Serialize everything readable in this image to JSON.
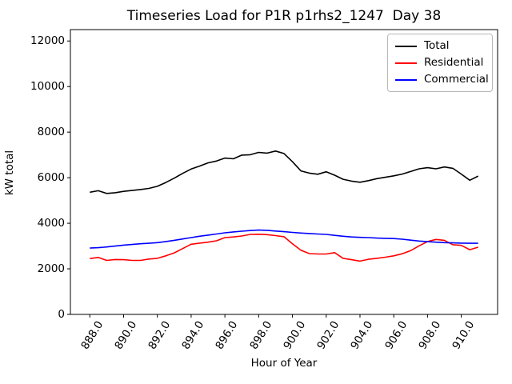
{
  "title": "Timeseries Load for P1R p1rhs2_1247  Day 38",
  "chart_data": {
    "type": "line",
    "title": "Timeseries Load for P1R p1rhs2_1247  Day 38",
    "xlabel": "Hour of Year",
    "ylabel": "kW total",
    "xlim": [
      886.85,
      912.15
    ],
    "ylim": [
      0,
      12500
    ],
    "grid": false,
    "legend_position": "upper right",
    "xtick_labels": [
      "888.0",
      "890.0",
      "892.0",
      "894.0",
      "896.0",
      "898.0",
      "900.0",
      "902.0",
      "904.0",
      "906.0",
      "908.0",
      "910.0"
    ],
    "ytick_labels": [
      "0",
      "2000",
      "4000",
      "6000",
      "8000",
      "10000",
      "12000"
    ],
    "ytick_values": [
      0,
      2000,
      4000,
      6000,
      8000,
      10000,
      12000
    ],
    "x": [
      888.0,
      888.5,
      889.0,
      889.5,
      890.0,
      890.5,
      891.0,
      891.5,
      892.0,
      892.5,
      893.0,
      893.5,
      894.0,
      894.5,
      895.0,
      895.5,
      896.0,
      896.5,
      897.0,
      897.5,
      898.0,
      898.5,
      899.0,
      899.5,
      900.0,
      900.5,
      901.0,
      901.5,
      902.0,
      902.5,
      903.0,
      903.5,
      904.0,
      904.5,
      905.0,
      905.5,
      906.0,
      906.5,
      907.0,
      907.5,
      908.0,
      908.5,
      909.0,
      909.5,
      910.0,
      910.5,
      911.0
    ],
    "series": [
      {
        "name": "Total",
        "color": "#000000",
        "values": [
          5360,
          5430,
          5310,
          5340,
          5400,
          5440,
          5480,
          5530,
          5620,
          5790,
          5980,
          6190,
          6380,
          6510,
          6650,
          6730,
          6860,
          6830,
          6990,
          7010,
          7110,
          7080,
          7170,
          7060,
          6700,
          6300,
          6200,
          6150,
          6260,
          6110,
          5930,
          5850,
          5800,
          5870,
          5960,
          6020,
          6080,
          6160,
          6270,
          6390,
          6440,
          6390,
          6470,
          6410,
          6160,
          5890,
          6070
        ]
      },
      {
        "name": "Residential",
        "color": "#ff0000",
        "values": [
          2450,
          2500,
          2370,
          2410,
          2400,
          2370,
          2370,
          2430,
          2460,
          2570,
          2700,
          2890,
          3080,
          3130,
          3170,
          3230,
          3370,
          3400,
          3440,
          3510,
          3520,
          3500,
          3460,
          3410,
          3100,
          2820,
          2670,
          2650,
          2650,
          2710,
          2460,
          2400,
          2340,
          2420,
          2460,
          2510,
          2570,
          2660,
          2800,
          3010,
          3200,
          3290,
          3250,
          3060,
          3030,
          2840,
          2950
        ]
      },
      {
        "name": "Commercial",
        "color": "#0000ff",
        "values": [
          2910,
          2930,
          2960,
          3000,
          3040,
          3070,
          3100,
          3120,
          3150,
          3200,
          3250,
          3310,
          3370,
          3430,
          3480,
          3530,
          3580,
          3620,
          3650,
          3680,
          3700,
          3690,
          3660,
          3630,
          3600,
          3570,
          3550,
          3530,
          3510,
          3470,
          3430,
          3400,
          3380,
          3370,
          3350,
          3340,
          3330,
          3300,
          3260,
          3220,
          3190,
          3170,
          3150,
          3140,
          3130,
          3120,
          3120
        ]
      }
    ]
  }
}
